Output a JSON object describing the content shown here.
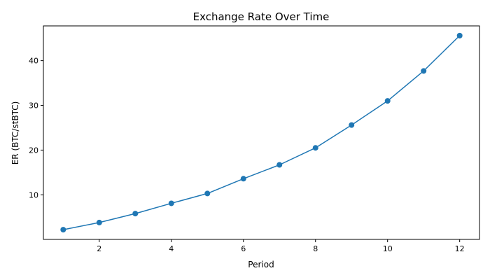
{
  "chart_data": {
    "type": "line",
    "title": "Exchange Rate Over Time",
    "xlabel": "Period",
    "ylabel": "ER (BTC/stBTC)",
    "x": [
      1,
      2,
      3,
      4,
      5,
      6,
      7,
      8,
      9,
      10,
      11,
      12
    ],
    "series": [
      {
        "values": [
          2.2,
          3.8,
          5.8,
          8.1,
          10.3,
          13.6,
          16.7,
          20.5,
          25.6,
          31.0,
          37.7,
          45.6
        ],
        "color": "#1f77b4",
        "marker": "circle"
      }
    ],
    "xlim": [
      0.45,
      12.55
    ],
    "ylim": [
      0.03,
      47.77
    ],
    "xticks": [
      2,
      4,
      6,
      8,
      10,
      12
    ],
    "yticks": [
      10,
      20,
      30,
      40
    ],
    "grid": false,
    "legend": "none"
  }
}
